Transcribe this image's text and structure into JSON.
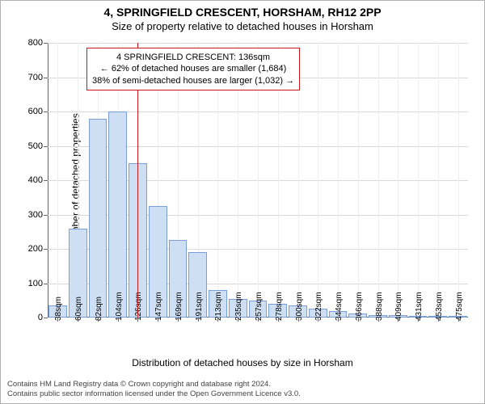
{
  "header": {
    "title": "4, SPRINGFIELD CRESCENT, HORSHAM, RH12 2PP",
    "subtitle": "Size of property relative to detached houses in Horsham"
  },
  "chart": {
    "type": "histogram",
    "ylabel": "Number of detached properties",
    "xlabel": "Distribution of detached houses by size in Horsham",
    "ylim": [
      0,
      800
    ],
    "ytick_step": 100,
    "yticks": [
      0,
      100,
      200,
      300,
      400,
      500,
      600,
      700,
      800
    ],
    "categories": [
      "38sqm",
      "60sqm",
      "82sqm",
      "104sqm",
      "126sqm",
      "147sqm",
      "169sqm",
      "191sqm",
      "213sqm",
      "235sqm",
      "257sqm",
      "278sqm",
      "300sqm",
      "322sqm",
      "344sqm",
      "366sqm",
      "388sqm",
      "409sqm",
      "431sqm",
      "453sqm",
      "475sqm"
    ],
    "values": [
      35,
      260,
      580,
      600,
      450,
      325,
      225,
      190,
      80,
      55,
      50,
      40,
      35,
      25,
      18,
      12,
      8,
      6,
      5,
      4,
      3
    ],
    "bar_fill": "#cfdff3",
    "bar_border": "#7a9edb",
    "grid_color": "#d9d9d9",
    "background_color": "#ffffff",
    "axis_color": "#666666",
    "label_fontsize": 12,
    "tick_fontsize": 11,
    "reference_line": {
      "position_index": 4.5,
      "color": "#d11919",
      "width": 1.5
    },
    "annotation": {
      "border_color": "#c71717",
      "bg_color": "#ffffff",
      "line1": "4 SPRINGFIELD CRESCENT: 136sqm",
      "line2": "← 62% of detached houses are smaller (1,684)",
      "line3": "38% of semi-detached houses are larger (1,032) →"
    }
  },
  "footer": {
    "line1": "Contains HM Land Registry data © Crown copyright and database right 2024.",
    "line2": "Contains public sector information licensed under the Open Government Licence v3.0."
  }
}
